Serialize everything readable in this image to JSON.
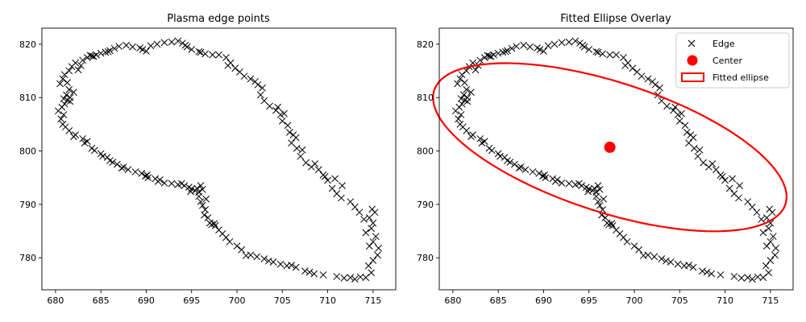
{
  "chart_data": [
    {
      "type": "scatter",
      "title": "Plasma edge points",
      "xlabel": "",
      "ylabel": "",
      "xlim": [
        678.5,
        717.5
      ],
      "ylim": [
        774,
        823
      ],
      "xticks": [
        680,
        685,
        690,
        695,
        700,
        705,
        710,
        715
      ],
      "yticks": [
        780,
        790,
        800,
        810,
        820
      ],
      "grid": false,
      "marker": "x",
      "series": [
        {
          "name": "",
          "color": "#000000",
          "marker": "x"
        }
      ]
    },
    {
      "type": "scatter",
      "title": "Fitted Ellipse Overlay",
      "xlabel": "",
      "ylabel": "",
      "xlim": [
        678.5,
        717.5
      ],
      "ylim": [
        774,
        823
      ],
      "xticks": [
        680,
        685,
        690,
        695,
        700,
        705,
        710,
        715
      ],
      "yticks": [
        780,
        790,
        800,
        810,
        820
      ],
      "grid": false,
      "legend_position": "top-right",
      "legend": [
        {
          "label": "Edge",
          "color": "#000000",
          "marker": "x"
        },
        {
          "label": "Center",
          "color": "#ff0000",
          "marker": "circle"
        },
        {
          "label": "Fitted ellipse",
          "color": "#ff0000",
          "marker": "rect-outline"
        }
      ],
      "center": {
        "x": 697.3,
        "y": 800.7,
        "color": "#ff0000"
      },
      "ellipse": {
        "cx": 697.3,
        "cy": 800.7,
        "semi_major": 22.5,
        "semi_minor": 11.0,
        "angle_deg": -35,
        "color": "#ff0000"
      }
    }
  ],
  "edge_points": [
    [
      680.3,
      807.5
    ],
    [
      680.7,
      808.2
    ],
    [
      681.0,
      808.8
    ],
    [
      681.3,
      809.5
    ],
    [
      681.6,
      809.3
    ],
    [
      680.9,
      806.8
    ],
    [
      680.6,
      806.0
    ],
    [
      680.8,
      805.0
    ],
    [
      681.1,
      804.5
    ],
    [
      681.5,
      803.8
    ],
    [
      682.2,
      803.0
    ],
    [
      683.0,
      802.3
    ],
    [
      683.5,
      801.8
    ],
    [
      684.0,
      800.5
    ],
    [
      684.3,
      800.1
    ],
    [
      685.0,
      799.5
    ],
    [
      685.7,
      798.8
    ],
    [
      686.0,
      798.2
    ],
    [
      686.8,
      797.5
    ],
    [
      687.5,
      797.0
    ],
    [
      688.0,
      796.5
    ],
    [
      688.8,
      796.1
    ],
    [
      689.5,
      795.8
    ],
    [
      690.1,
      795.5
    ],
    [
      690.2,
      795.0
    ],
    [
      691.0,
      794.8
    ],
    [
      691.3,
      794.3
    ],
    [
      692.0,
      794.0
    ],
    [
      692.8,
      793.9
    ],
    [
      693.5,
      793.7
    ],
    [
      694.2,
      793.5
    ],
    [
      694.7,
      793.2
    ],
    [
      695.0,
      792.9
    ],
    [
      695.4,
      792.6
    ],
    [
      695.8,
      792.3
    ],
    [
      696.0,
      793.5
    ],
    [
      696.2,
      792.8
    ],
    [
      695.8,
      791.5
    ],
    [
      696.0,
      790.5
    ],
    [
      696.2,
      789.8
    ],
    [
      696.5,
      789.0
    ],
    [
      696.4,
      788.0
    ],
    [
      696.8,
      787.5
    ],
    [
      697.0,
      786.5
    ],
    [
      697.6,
      786.0
    ],
    [
      698.0,
      785.2
    ],
    [
      698.4,
      784.5
    ],
    [
      698.8,
      783.8
    ],
    [
      699.2,
      783.0
    ],
    [
      700.0,
      782.2
    ],
    [
      700.5,
      781.5
    ],
    [
      701.5,
      780.5
    ],
    [
      702.2,
      780.2
    ],
    [
      703.0,
      779.8
    ],
    [
      704.0,
      779.2
    ],
    [
      704.8,
      778.8
    ],
    [
      705.5,
      778.5
    ],
    [
      706.5,
      778.2
    ],
    [
      707.5,
      777.5
    ],
    [
      708.5,
      777.0
    ],
    [
      709.5,
      776.8
    ],
    [
      711.0,
      776.5
    ],
    [
      711.8,
      776.2
    ],
    [
      713.0,
      776.0
    ],
    [
      714.2,
      776.3
    ],
    [
      714.8,
      777.2
    ],
    [
      714.5,
      778.5
    ],
    [
      715.0,
      779.5
    ],
    [
      715.5,
      780.5
    ],
    [
      715.6,
      781.8
    ],
    [
      715.0,
      783.0
    ],
    [
      715.3,
      784.0
    ],
    [
      714.8,
      785.5
    ],
    [
      715.0,
      786.5
    ],
    [
      714.6,
      787.5
    ],
    [
      715.2,
      788.5
    ],
    [
      714.0,
      787.2
    ],
    [
      713.5,
      788.5
    ],
    [
      713.0,
      789.5
    ],
    [
      712.5,
      790.5
    ],
    [
      711.5,
      791.2
    ],
    [
      711.0,
      792.0
    ],
    [
      710.5,
      793.0
    ],
    [
      710.0,
      794.5
    ],
    [
      709.5,
      795.5
    ],
    [
      709.0,
      796.5
    ],
    [
      708.2,
      797.0
    ],
    [
      707.6,
      797.8
    ],
    [
      707.0,
      799.0
    ],
    [
      706.6,
      800.5
    ],
    [
      706.0,
      801.5
    ],
    [
      706.5,
      802.5
    ],
    [
      705.8,
      803.5
    ],
    [
      705.6,
      804.8
    ],
    [
      705.0,
      805.6
    ],
    [
      704.8,
      806.8
    ],
    [
      704.3,
      807.6
    ],
    [
      703.6,
      808.4
    ],
    [
      703.0,
      809.4
    ],
    [
      702.6,
      810.5
    ],
    [
      702.8,
      811.8
    ],
    [
      702.0,
      813.0
    ],
    [
      701.5,
      813.5
    ],
    [
      700.8,
      814.0
    ],
    [
      700.3,
      814.8
    ],
    [
      699.8,
      815.5
    ],
    [
      699.3,
      816.5
    ],
    [
      698.8,
      817.5
    ],
    [
      698.0,
      818.0
    ],
    [
      697.3,
      818.0
    ],
    [
      696.5,
      818.2
    ],
    [
      695.8,
      818.6
    ],
    [
      695.0,
      819.0
    ],
    [
      694.5,
      819.5
    ],
    [
      694.0,
      820.2
    ],
    [
      693.5,
      820.6
    ],
    [
      692.8,
      820.4
    ],
    [
      692.0,
      820.3
    ],
    [
      691.2,
      820.0
    ],
    [
      690.5,
      819.7
    ],
    [
      690.0,
      818.7
    ],
    [
      689.3,
      819.3
    ],
    [
      688.5,
      819.5
    ],
    [
      687.8,
      819.8
    ],
    [
      687.0,
      819.6
    ],
    [
      686.5,
      819.2
    ],
    [
      686.0,
      818.8
    ],
    [
      685.5,
      818.5
    ],
    [
      685.0,
      818.3
    ],
    [
      684.5,
      818.0
    ],
    [
      684.0,
      817.8
    ],
    [
      683.5,
      817.5
    ],
    [
      683.0,
      817.0
    ],
    [
      682.8,
      816.0
    ],
    [
      682.2,
      816.5
    ],
    [
      681.8,
      815.8
    ],
    [
      681.5,
      815.0
    ],
    [
      681.0,
      814.3
    ],
    [
      680.8,
      813.5
    ],
    [
      680.5,
      812.6
    ],
    [
      681.3,
      812.8
    ],
    [
      681.5,
      811.5
    ],
    [
      681.2,
      810.5
    ],
    [
      680.9,
      809.8
    ],
    [
      681.6,
      810.0
    ],
    [
      682.0,
      811.0
    ],
    [
      697.2,
      786.2
    ],
    [
      697.5,
      786.4
    ],
    [
      701.0,
      780.4
    ],
    [
      703.5,
      779.4
    ],
    [
      706.0,
      778.6
    ],
    [
      708.0,
      777.3
    ],
    [
      712.5,
      776.3
    ],
    [
      713.6,
      776.4
    ],
    [
      714.6,
      782.2
    ],
    [
      714.2,
      784.7
    ],
    [
      714.9,
      789.1
    ],
    [
      706.2,
      803.0
    ],
    [
      707.2,
      800.2
    ],
    [
      708.6,
      797.6
    ],
    [
      709.7,
      795.2
    ],
    [
      710.8,
      794.8
    ],
    [
      711.6,
      793.5
    ],
    [
      705.2,
      807.0
    ],
    [
      704.5,
      808.2
    ],
    [
      702.3,
      812.4
    ],
    [
      699.0,
      816.0
    ],
    [
      696.0,
      818.5
    ],
    [
      694.3,
      819.8
    ],
    [
      689.6,
      819.0
    ],
    [
      685.8,
      818.6
    ],
    [
      684.2,
      817.7
    ],
    [
      683.8,
      817.9
    ],
    [
      682.5,
      815.2
    ],
    [
      696.6,
      791.0
    ],
    [
      695.6,
      793.0
    ],
    [
      694.9,
      792.4
    ],
    [
      693.9,
      793.9
    ],
    [
      691.5,
      794.6
    ],
    [
      689.9,
      795.3
    ],
    [
      687.3,
      796.8
    ],
    [
      686.3,
      797.9
    ],
    [
      685.2,
      799.0
    ],
    [
      683.2,
      801.5
    ],
    [
      682.0,
      802.7
    ]
  ]
}
